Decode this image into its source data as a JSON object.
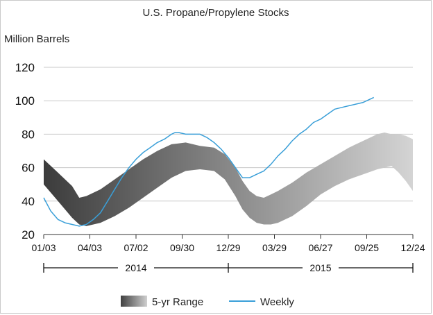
{
  "chart_data": {
    "type": "line",
    "title": "U.S. Propane/Propylene Stocks",
    "ylabel": "Million Barrels",
    "ylim": [
      20,
      120
    ],
    "yticks": [
      20,
      40,
      60,
      80,
      100,
      120
    ],
    "x_tick_labels": [
      "01/03",
      "04/03",
      "07/02",
      "09/30",
      "12/29",
      "03/29",
      "06/27",
      "09/25",
      "12/24"
    ],
    "x_tick_weeks": [
      0,
      13,
      26,
      39,
      52,
      65,
      78,
      91,
      104
    ],
    "years": [
      "2014",
      "2015"
    ],
    "legend": [
      "5-yr Range",
      "Weekly"
    ],
    "colors": {
      "range_dark": "#404040",
      "range_light": "#d6d6d6",
      "weekly": "#3a9fd8",
      "grid": "#c8c8c8"
    },
    "series": [
      {
        "name": "5-yr Range",
        "kind": "band",
        "x": [
          0,
          4,
          8,
          10,
          12,
          14,
          16,
          20,
          24,
          28,
          32,
          36,
          40,
          44,
          48,
          51,
          54,
          56,
          58,
          60,
          62,
          64,
          66,
          70,
          74,
          78,
          82,
          86,
          90,
          94,
          96,
          98,
          100,
          102,
          104
        ],
        "upper": [
          65,
          57,
          49,
          42,
          43,
          45,
          47,
          53,
          59,
          65,
          70,
          74,
          75,
          73,
          72,
          68,
          60,
          52,
          46,
          43,
          42,
          44,
          46,
          51,
          57,
          62,
          67,
          72,
          76,
          80,
          81,
          80,
          80,
          79,
          77
        ],
        "lower": [
          50,
          40,
          30,
          26,
          25,
          26,
          27,
          31,
          36,
          42,
          48,
          54,
          58,
          59,
          58,
          53,
          43,
          35,
          30,
          27,
          26,
          26,
          27,
          31,
          37,
          44,
          49,
          53,
          56,
          59,
          60,
          61,
          57,
          52,
          46
        ]
      },
      {
        "name": "Weekly",
        "kind": "line",
        "x": [
          0,
          2,
          4,
          6,
          8,
          10,
          12,
          14,
          16,
          18,
          20,
          22,
          24,
          26,
          28,
          30,
          32,
          34,
          36,
          37,
          38,
          40,
          42,
          44,
          46,
          48,
          50,
          52,
          54,
          56,
          58,
          60,
          61,
          62,
          64,
          66,
          68,
          70,
          72,
          74,
          76,
          78,
          80,
          82,
          84,
          86,
          88,
          90,
          91,
          92,
          93
        ],
        "y": [
          42,
          34,
          29,
          27,
          26,
          25,
          26,
          29,
          33,
          40,
          47,
          54,
          60,
          65,
          69,
          72,
          75,
          77,
          80,
          81,
          81,
          80,
          80,
          80,
          78,
          75,
          71,
          66,
          60,
          54,
          54,
          56,
          57,
          58,
          62,
          67,
          71,
          76,
          80,
          83,
          87,
          89,
          92,
          95,
          96,
          97,
          98,
          99,
          100,
          101,
          102
        ]
      }
    ]
  }
}
